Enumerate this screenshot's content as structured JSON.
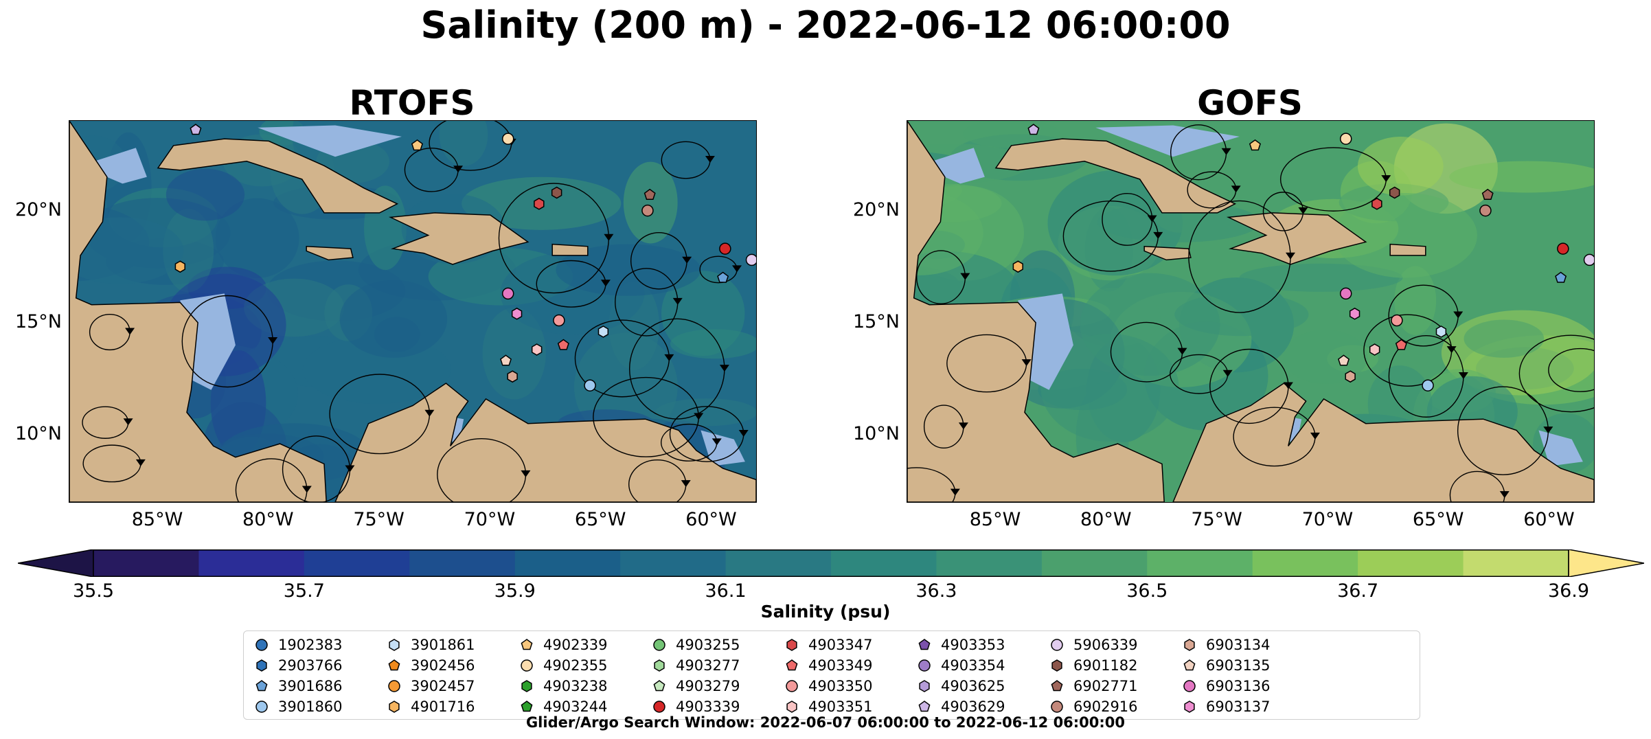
{
  "figure": {
    "title": "Salinity (200 m) - 2022-06-12 06:00:00",
    "search_window": "Glider/Argo Search Window: 2022-06-07 06:00:00 to 2022-06-12 06:00:00"
  },
  "panels": [
    {
      "title": "RTOFS",
      "id": "rtofs"
    },
    {
      "title": "GOFS",
      "id": "gofs"
    }
  ],
  "axes": {
    "y_ticks": [
      "20°N",
      "15°N",
      "10°N"
    ],
    "x_ticks": [
      "85°W",
      "80°W",
      "75°W",
      "70°W",
      "65°W",
      "60°W"
    ],
    "lon_range": [
      -89,
      -58
    ],
    "lat_range": [
      7,
      24
    ]
  },
  "colorbar": {
    "label": "Salinity (psu)",
    "ticks": [
      "35.5",
      "35.7",
      "35.9",
      "36.1",
      "36.3",
      "36.5",
      "36.7",
      "36.9"
    ],
    "min": 35.5,
    "max": 36.9,
    "extend": "both",
    "colors": [
      "#271a5f",
      "#2b2d97",
      "#1f3f95",
      "#1d4f8e",
      "#1b5f89",
      "#216b88",
      "#297983",
      "#2e877e",
      "#3a9277",
      "#4ba06d",
      "#5db168",
      "#79c15d",
      "#9ccd58",
      "#c3db6e"
    ],
    "over_color": "#fde68a",
    "under_color": "#1d1446"
  },
  "colors": {
    "land": "#d2b48c",
    "shallow": "#97b6e0",
    "streamline": "#000000"
  },
  "legend": {
    "columns": [
      [
        {
          "id": "1902383",
          "marker": "circle",
          "color": "#2f73b8"
        },
        {
          "id": "2903766",
          "marker": "hexagon",
          "color": "#2f73b8"
        },
        {
          "id": "3901686",
          "marker": "pentagon",
          "color": "#6aa2d8"
        },
        {
          "id": "3901860",
          "marker": "circle",
          "color": "#9ec8ee"
        }
      ],
      [
        {
          "id": "3901861",
          "marker": "hexagon",
          "color": "#c5dff6"
        },
        {
          "id": "3902456",
          "marker": "pentagon",
          "color": "#f08a1c"
        },
        {
          "id": "3902457",
          "marker": "circle",
          "color": "#f59a35"
        },
        {
          "id": "4901716",
          "marker": "hexagon",
          "color": "#f6b560"
        }
      ],
      [
        {
          "id": "4902339",
          "marker": "pentagon",
          "color": "#f8c77e"
        },
        {
          "id": "4902355",
          "marker": "circle",
          "color": "#fbdcae"
        },
        {
          "id": "4903238",
          "marker": "hexagon",
          "color": "#2ca02c"
        },
        {
          "id": "4903244",
          "marker": "pentagon",
          "color": "#2ca02c"
        }
      ],
      [
        {
          "id": "4903255",
          "marker": "circle",
          "color": "#74c476"
        },
        {
          "id": "4903277",
          "marker": "hexagon",
          "color": "#a1d99b"
        },
        {
          "id": "4903279",
          "marker": "pentagon",
          "color": "#c7e9c0"
        },
        {
          "id": "4903339",
          "marker": "circle",
          "color": "#d62728"
        }
      ],
      [
        {
          "id": "4903347",
          "marker": "hexagon",
          "color": "#d9484a"
        },
        {
          "id": "4903349",
          "marker": "pentagon",
          "color": "#ee6a6a"
        },
        {
          "id": "4903350",
          "marker": "circle",
          "color": "#f39a9a"
        },
        {
          "id": "4903351",
          "marker": "hexagon",
          "color": "#f8c4c4"
        }
      ],
      [
        {
          "id": "4903353",
          "marker": "pentagon",
          "color": "#7b52ab"
        },
        {
          "id": "4903354",
          "marker": "circle",
          "color": "#9e7cc8"
        },
        {
          "id": "4903625",
          "marker": "hexagon",
          "color": "#b59cd8"
        },
        {
          "id": "4903629",
          "marker": "pentagon",
          "color": "#cdb6e6"
        }
      ],
      [
        {
          "id": "5906339",
          "marker": "circle",
          "color": "#e2cdef"
        },
        {
          "id": "6901182",
          "marker": "hexagon",
          "color": "#8c564b"
        },
        {
          "id": "6902771",
          "marker": "pentagon",
          "color": "#a0675c"
        },
        {
          "id": "6902916",
          "marker": "circle",
          "color": "#c4897c"
        }
      ],
      [
        {
          "id": "6903134",
          "marker": "hexagon",
          "color": "#d9a793"
        },
        {
          "id": "6903135",
          "marker": "pentagon",
          "color": "#f2d3c2"
        },
        {
          "id": "6903136",
          "marker": "circle",
          "color": "#e377c2"
        },
        {
          "id": "6903137",
          "marker": "hexagon",
          "color": "#ee8ed0"
        }
      ]
    ]
  },
  "observations": [
    {
      "id": "4903629",
      "lon": -83.3,
      "lat": 23.6,
      "color": "#cdb6e6",
      "marker": "pentagon"
    },
    {
      "id": "4902355",
      "lon": -69.2,
      "lat": 23.2,
      "color": "#fbdcae",
      "marker": "circle"
    },
    {
      "id": "4902339",
      "lon": -73.3,
      "lat": 22.9,
      "color": "#f8c77e",
      "marker": "pentagon"
    },
    {
      "id": "6901182",
      "lon": -67.0,
      "lat": 20.8,
      "color": "#8c564b",
      "marker": "hexagon"
    },
    {
      "id": "4903347",
      "lon": -67.8,
      "lat": 20.3,
      "color": "#d9484a",
      "marker": "hexagon"
    },
    {
      "id": "6902771",
      "lon": -62.8,
      "lat": 20.7,
      "color": "#a0675c",
      "marker": "pentagon"
    },
    {
      "id": "6902916",
      "lon": -62.9,
      "lat": 20.0,
      "color": "#c4897c",
      "marker": "circle"
    },
    {
      "id": "4903339",
      "lon": -59.4,
      "lat": 18.3,
      "color": "#d62728",
      "marker": "circle"
    },
    {
      "id": "5906339",
      "lon": -58.2,
      "lat": 17.8,
      "color": "#e2cdef",
      "marker": "circle"
    },
    {
      "id": "3901686",
      "lon": -59.5,
      "lat": 17.0,
      "color": "#6aa2d8",
      "marker": "pentagon"
    },
    {
      "id": "4901716",
      "lon": -84.0,
      "lat": 17.5,
      "color": "#f6b560",
      "marker": "hexagon"
    },
    {
      "id": "6903136",
      "lon": -69.2,
      "lat": 16.3,
      "color": "#e377c2",
      "marker": "circle"
    },
    {
      "id": "6903137",
      "lon": -68.8,
      "lat": 15.4,
      "color": "#ee8ed0",
      "marker": "hexagon"
    },
    {
      "id": "4903350",
      "lon": -66.9,
      "lat": 15.1,
      "color": "#f39a9a",
      "marker": "circle"
    },
    {
      "id": "3901861",
      "lon": -64.9,
      "lat": 14.6,
      "color": "#c5dff6",
      "marker": "hexagon"
    },
    {
      "id": "4903349",
      "lon": -66.7,
      "lat": 14.0,
      "color": "#ee6a6a",
      "marker": "pentagon"
    },
    {
      "id": "4903351",
      "lon": -67.9,
      "lat": 13.8,
      "color": "#f8c4c4",
      "marker": "hexagon"
    },
    {
      "id": "6903135",
      "lon": -69.3,
      "lat": 13.3,
      "color": "#f2d3c2",
      "marker": "pentagon"
    },
    {
      "id": "6903134",
      "lon": -69.0,
      "lat": 12.6,
      "color": "#d9a793",
      "marker": "hexagon"
    },
    {
      "id": "3901860",
      "lon": -65.5,
      "lat": 12.2,
      "color": "#9ec8ee",
      "marker": "circle"
    }
  ]
}
